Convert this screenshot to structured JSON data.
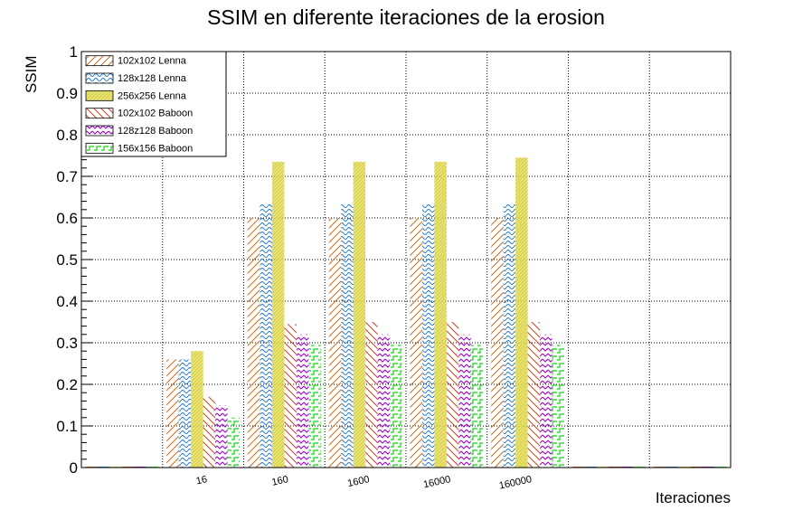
{
  "chart_data": {
    "type": "bar",
    "title": "SSIM en diferente iteraciones de la erosion",
    "xlabel": "Iteraciones",
    "ylabel": "SSIM",
    "ylim": [
      0,
      1
    ],
    "yticks": [
      "0",
      "0.1",
      "0.2",
      "0.3",
      "0.4",
      "0.5",
      "0.6",
      "0.7",
      "0.8",
      "0.9",
      "1"
    ],
    "grid": true,
    "legend_position": "top-left",
    "bins": [
      "",
      "16",
      "160",
      "1600",
      "16000",
      "160000",
      "",
      ""
    ],
    "series": [
      {
        "name": "102x102 Lenna",
        "color": "#d2691e",
        "pattern": "diag-right",
        "values": [
          0,
          0.26,
          0.6,
          0.6,
          0.6,
          0.6,
          0,
          0
        ]
      },
      {
        "name": "128x128 Lenna",
        "color": "#1f77d0",
        "pattern": "wave",
        "values": [
          0,
          0.26,
          0.635,
          0.635,
          0.635,
          0.635,
          0,
          0
        ]
      },
      {
        "name": "256x256 Lenna",
        "color": "#d4cc30",
        "pattern": "dense",
        "values": [
          0,
          0.28,
          0.735,
          0.735,
          0.735,
          0.745,
          0,
          0
        ]
      },
      {
        "name": "102x102 Baboon",
        "color": "#cc4422",
        "pattern": "diag-left",
        "values": [
          0,
          0.17,
          0.345,
          0.35,
          0.35,
          0.35,
          0,
          0
        ]
      },
      {
        "name": "128z128 Baboon",
        "color": "#9900cc",
        "pattern": "zigzag",
        "values": [
          0,
          0.15,
          0.32,
          0.32,
          0.32,
          0.32,
          0,
          0
        ]
      },
      {
        "name": "156x156 Baboon",
        "color": "#33dd33",
        "pattern": "stairs",
        "values": [
          0,
          0.12,
          0.295,
          0.295,
          0.295,
          0.295,
          0,
          0
        ]
      }
    ]
  }
}
